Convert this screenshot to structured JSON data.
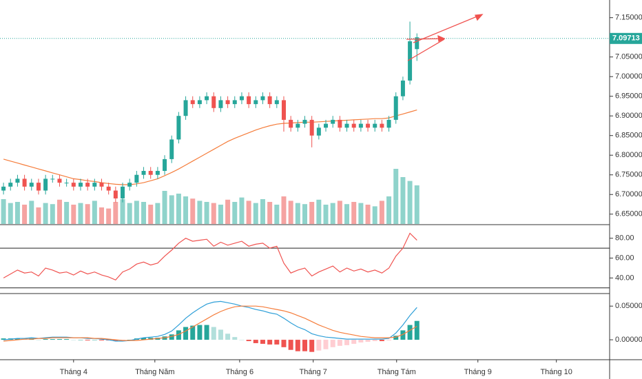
{
  "chart_data": [
    {
      "type": "candlestick",
      "open": [
        6.71,
        6.72,
        6.73,
        6.74,
        6.72,
        6.73,
        6.71,
        6.74,
        6.74,
        6.73,
        6.73,
        6.72,
        6.73,
        6.72,
        6.73,
        6.72,
        6.71,
        6.69,
        6.72,
        6.73,
        6.75,
        6.76,
        6.75,
        6.76,
        6.79,
        6.84,
        6.9,
        6.94,
        6.93,
        6.94,
        6.95,
        6.92,
        6.94,
        6.93,
        6.94,
        6.95,
        6.93,
        6.94,
        6.95,
        6.93,
        6.94,
        6.89,
        6.87,
        6.88,
        6.89,
        6.85,
        6.87,
        6.88,
        6.89,
        6.87,
        6.88,
        6.87,
        6.88,
        6.87,
        6.88,
        6.87,
        6.89,
        6.95,
        6.99,
        7.07
      ],
      "high": [
        6.73,
        6.74,
        6.75,
        6.75,
        6.74,
        6.74,
        6.75,
        6.75,
        6.75,
        6.74,
        6.74,
        6.74,
        6.74,
        6.74,
        6.74,
        6.73,
        6.72,
        6.73,
        6.74,
        6.76,
        6.77,
        6.77,
        6.77,
        6.8,
        6.85,
        6.91,
        6.95,
        6.95,
        6.95,
        6.96,
        6.96,
        6.95,
        6.95,
        6.95,
        6.96,
        6.96,
        6.95,
        6.96,
        6.96,
        6.95,
        6.95,
        6.9,
        6.89,
        6.9,
        6.9,
        6.88,
        6.89,
        6.9,
        6.9,
        6.89,
        6.89,
        6.89,
        6.89,
        6.89,
        6.89,
        6.9,
        6.96,
        7.0,
        7.14,
        7.11
      ],
      "low": [
        6.7,
        6.71,
        6.72,
        6.71,
        6.71,
        6.7,
        6.7,
        6.73,
        6.72,
        6.72,
        6.71,
        6.71,
        6.71,
        6.71,
        6.71,
        6.7,
        6.68,
        6.68,
        6.71,
        6.72,
        6.74,
        6.74,
        6.74,
        6.75,
        6.78,
        6.83,
        6.89,
        6.92,
        6.92,
        6.93,
        6.91,
        6.91,
        6.92,
        6.92,
        6.93,
        6.92,
        6.92,
        6.93,
        6.92,
        6.92,
        6.86,
        6.86,
        6.86,
        6.87,
        6.82,
        6.84,
        6.86,
        6.87,
        6.86,
        6.86,
        6.86,
        6.86,
        6.86,
        6.86,
        6.86,
        6.86,
        6.88,
        6.94,
        6.98,
        7.04
      ],
      "close": [
        6.72,
        6.73,
        6.74,
        6.72,
        6.73,
        6.71,
        6.74,
        6.74,
        6.73,
        6.73,
        6.72,
        6.73,
        6.72,
        6.73,
        6.72,
        6.71,
        6.69,
        6.72,
        6.73,
        6.75,
        6.76,
        6.75,
        6.76,
        6.79,
        6.84,
        6.9,
        6.94,
        6.93,
        6.94,
        6.95,
        6.92,
        6.94,
        6.93,
        6.94,
        6.95,
        6.93,
        6.94,
        6.95,
        6.93,
        6.94,
        6.89,
        6.87,
        6.88,
        6.89,
        6.85,
        6.87,
        6.88,
        6.89,
        6.87,
        6.88,
        6.87,
        6.88,
        6.87,
        6.88,
        6.87,
        6.89,
        6.95,
        6.99,
        7.09,
        7.1
      ],
      "color_up": "#26a69a",
      "color_down": "#ef5350",
      "ma": {
        "color": "#f57c3a",
        "values": [
          6.79,
          6.785,
          6.78,
          6.775,
          6.77,
          6.765,
          6.76,
          6.755,
          6.75,
          6.745,
          6.74,
          6.738,
          6.735,
          6.733,
          6.73,
          6.728,
          6.726,
          6.725,
          6.725,
          6.727,
          6.73,
          6.735,
          6.74,
          6.748,
          6.756,
          6.765,
          6.775,
          6.785,
          6.795,
          6.805,
          6.815,
          6.825,
          6.835,
          6.843,
          6.85,
          6.857,
          6.864,
          6.87,
          6.875,
          6.879,
          6.881,
          6.882,
          6.883,
          6.884,
          6.884,
          6.885,
          6.886,
          6.887,
          6.888,
          6.889,
          6.89,
          6.891,
          6.892,
          6.893,
          6.893,
          6.895,
          6.9,
          6.905,
          6.91,
          6.915
        ]
      },
      "volume": {
        "color_up": "#8fd3cb",
        "color_down": "#f5a3a1",
        "values": [
          45,
          38,
          40,
          35,
          42,
          30,
          38,
          36,
          44,
          40,
          35,
          38,
          36,
          42,
          30,
          28,
          40,
          45,
          38,
          42,
          40,
          35,
          38,
          60,
          52,
          55,
          50,
          46,
          42,
          40,
          38,
          35,
          44,
          40,
          48,
          42,
          38,
          45,
          40,
          35,
          50,
          42,
          38,
          36,
          40,
          44,
          35,
          38,
          42,
          36,
          40,
          38,
          35,
          32,
          42,
          50,
          100,
          85,
          78,
          70
        ]
      },
      "last_price": {
        "value": 7.09713,
        "label": "7.09713"
      },
      "ylim": [
        6.625,
        7.195
      ],
      "yticks": [
        {
          "value": 6.65,
          "label": "6.65000"
        },
        {
          "value": 6.7,
          "label": "6.70000"
        },
        {
          "value": 6.75,
          "label": "6.75000"
        },
        {
          "value": 6.8,
          "label": "6.80000"
        },
        {
          "value": 6.85,
          "label": "6.85000"
        },
        {
          "value": 6.9,
          "label": "6.90000"
        },
        {
          "value": 6.95,
          "label": "6.95000"
        },
        {
          "value": 7.0,
          "label": "7.00000"
        },
        {
          "value": 7.05,
          "label": "7.05000"
        },
        {
          "value": 7.15,
          "label": "7.15000"
        }
      ]
    },
    {
      "type": "line",
      "series": [
        {
          "color": "#f0524f",
          "values": [
            40,
            44,
            48,
            45,
            46,
            42,
            50,
            48,
            45,
            46,
            43,
            47,
            44,
            46,
            43,
            41,
            38,
            46,
            49,
            54,
            56,
            53,
            55,
            62,
            68,
            75,
            80,
            77,
            78,
            79,
            72,
            76,
            73,
            75,
            77,
            72,
            74,
            75,
            70,
            72,
            55,
            45,
            48,
            50,
            42,
            46,
            49,
            52,
            46,
            50,
            47,
            49,
            46,
            48,
            45,
            50,
            62,
            70,
            85,
            78
          ]
        }
      ],
      "levels": [
        70,
        30
      ],
      "ylim": [
        25,
        93
      ],
      "yticks": [
        {
          "value": 40,
          "label": "40.00"
        },
        {
          "value": 60,
          "label": "60.00"
        },
        {
          "value": 80,
          "label": "80.00"
        }
      ]
    },
    {
      "type": "macd",
      "series": [
        {
          "color": "#2e9fd8",
          "values": [
            0.0,
            0.001,
            0.002,
            0.002,
            0.003,
            0.002,
            0.003,
            0.004,
            0.004,
            0.004,
            0.003,
            0.003,
            0.002,
            0.002,
            0.001,
            0.0,
            -0.002,
            -0.002,
            -0.001,
            0.001,
            0.003,
            0.004,
            0.005,
            0.008,
            0.013,
            0.022,
            0.032,
            0.04,
            0.047,
            0.053,
            0.056,
            0.057,
            0.055,
            0.053,
            0.05,
            0.048,
            0.045,
            0.043,
            0.04,
            0.038,
            0.032,
            0.025,
            0.019,
            0.015,
            0.009,
            0.006,
            0.004,
            0.003,
            0.002,
            0.001,
            0.001,
            0.001,
            0.001,
            0.001,
            0.001,
            0.002,
            0.01,
            0.022,
            0.036,
            0.048
          ]
        },
        {
          "color": "#f57c3a",
          "values": [
            -0.002,
            -0.001,
            0.0,
            0.001,
            0.001,
            0.002,
            0.002,
            0.003,
            0.003,
            0.003,
            0.003,
            0.003,
            0.003,
            0.002,
            0.002,
            0.001,
            0.0,
            -0.001,
            -0.001,
            -0.001,
            0.0,
            0.001,
            0.002,
            0.003,
            0.005,
            0.008,
            0.013,
            0.019,
            0.025,
            0.031,
            0.037,
            0.042,
            0.046,
            0.049,
            0.05,
            0.05,
            0.05,
            0.049,
            0.047,
            0.045,
            0.043,
            0.04,
            0.036,
            0.032,
            0.027,
            0.022,
            0.018,
            0.014,
            0.011,
            0.009,
            0.007,
            0.005,
            0.004,
            0.003,
            0.003,
            0.003,
            0.004,
            0.008,
            0.014,
            0.02
          ]
        }
      ],
      "histogram": {
        "colors": [
          "#26a69a",
          "#b2dfdb",
          "#ef5350",
          "#ffcdd2"
        ],
        "values": [
          0.002,
          0.002,
          0.002,
          0.001,
          0.002,
          0.0,
          0.001,
          0.001,
          0.001,
          0.001,
          0.0,
          0.0,
          -0.001,
          0.0,
          -0.001,
          -0.001,
          -0.002,
          -0.001,
          0.0,
          0.002,
          0.003,
          0.003,
          0.003,
          0.005,
          0.008,
          0.014,
          0.019,
          0.021,
          0.022,
          0.022,
          0.019,
          0.015,
          0.009,
          0.004,
          0.0,
          -0.002,
          -0.005,
          -0.006,
          -0.007,
          -0.007,
          -0.011,
          -0.015,
          -0.017,
          -0.017,
          -0.018,
          -0.016,
          -0.014,
          -0.011,
          -0.009,
          -0.008,
          -0.006,
          -0.004,
          -0.003,
          -0.002,
          -0.002,
          -0.001,
          0.006,
          0.014,
          0.022,
          0.028
        ]
      },
      "ylim": [
        -0.0296,
        0.0666
      ],
      "yticks": [
        {
          "value": 0.0,
          "label": "0.00000"
        },
        {
          "value": 0.05,
          "label": "0.05000"
        }
      ],
      "xlim": [
        -0.5,
        86.5
      ],
      "xticks": [
        {
          "value": 10,
          "label": "Tháng 4"
        },
        {
          "value": 21.6,
          "label": "Tháng Năm"
        },
        {
          "value": 33.7,
          "label": "Tháng 6"
        },
        {
          "value": 44.2,
          "label": "Tháng 7"
        },
        {
          "value": 56.1,
          "label": "Tháng Tám"
        },
        {
          "value": 67.7,
          "label": "Tháng 9"
        },
        {
          "value": 78.9,
          "label": "Tháng 10"
        }
      ]
    }
  ]
}
